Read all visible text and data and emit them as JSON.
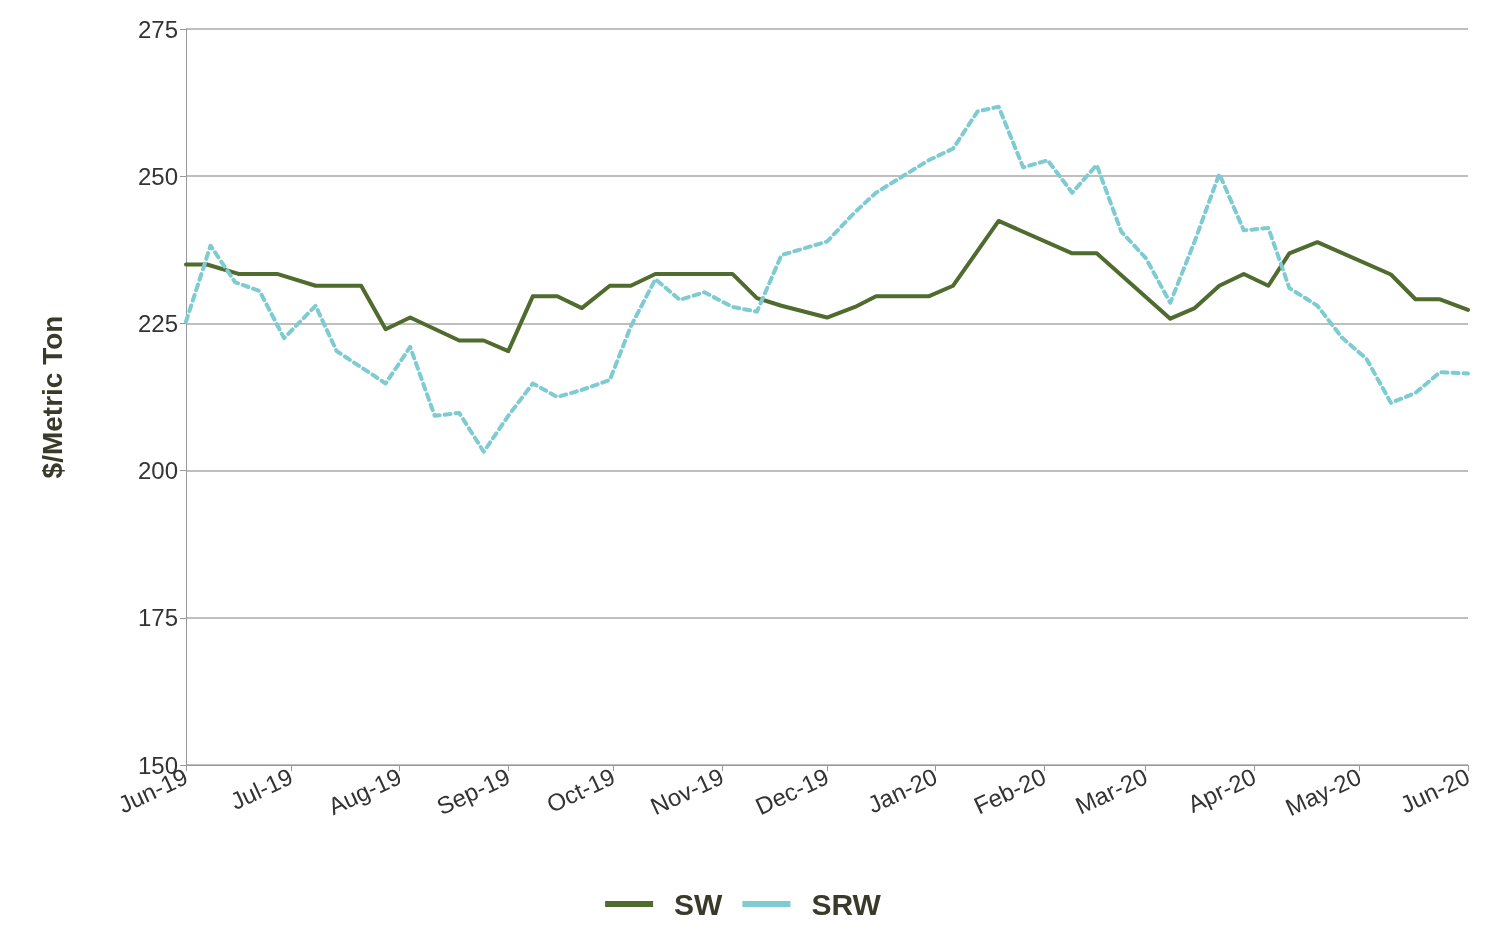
{
  "chart_data": {
    "type": "line",
    "ylabel": "$/Metric Ton",
    "ylim": [
      150,
      275
    ],
    "yticks": [
      150,
      175,
      200,
      225,
      250,
      275
    ],
    "xlim": [
      "2019-06-01",
      "2020-06-01"
    ],
    "xticks": [
      {
        "value": "2019-06-01",
        "label": "Jun-19"
      },
      {
        "value": "2019-07-01",
        "label": "Jul-19"
      },
      {
        "value": "2019-08-01",
        "label": "Aug-19"
      },
      {
        "value": "2019-09-01",
        "label": "Sep-19"
      },
      {
        "value": "2019-10-01",
        "label": "Oct-19"
      },
      {
        "value": "2019-11-01",
        "label": "Nov-19"
      },
      {
        "value": "2019-12-01",
        "label": "Dec-19"
      },
      {
        "value": "2020-01-01",
        "label": "Jan-20"
      },
      {
        "value": "2020-02-01",
        "label": "Feb-20"
      },
      {
        "value": "2020-03-01",
        "label": "Mar-20"
      },
      {
        "value": "2020-04-01",
        "label": "Apr-20"
      },
      {
        "value": "2020-05-01",
        "label": "May-20"
      },
      {
        "value": "2020-06-01",
        "label": "Jun-20"
      }
    ],
    "grid": "y",
    "legend": "bottom",
    "marker": "none",
    "series": [
      {
        "name": "SW",
        "color": "#4f6b2e",
        "line_style": "solid",
        "x": [
          "2019-06-01",
          "2019-06-07",
          "2019-06-16",
          "2019-06-27",
          "2019-07-08",
          "2019-07-21",
          "2019-07-28",
          "2019-08-04",
          "2019-08-18",
          "2019-08-25",
          "2019-09-01",
          "2019-09-08",
          "2019-09-15",
          "2019-09-22",
          "2019-09-30",
          "2019-10-06",
          "2019-10-13",
          "2019-11-04",
          "2019-11-11",
          "2019-11-18",
          "2019-12-01",
          "2019-12-09",
          "2019-12-15",
          "2019-12-30",
          "2020-01-06",
          "2020-01-19",
          "2020-02-09",
          "2020-02-16",
          "2020-03-08",
          "2020-03-15",
          "2020-03-22",
          "2020-03-29",
          "2020-04-05",
          "2020-04-11",
          "2020-04-19",
          "2020-05-10",
          "2020-05-17",
          "2020-05-24",
          "2020-06-01"
        ],
        "values": [
          235,
          235,
          233.4,
          233.4,
          231.4,
          231.4,
          224,
          226,
          222.1,
          222.1,
          220.3,
          229.6,
          229.6,
          227.6,
          231.4,
          231.4,
          233.4,
          233.4,
          229.3,
          228,
          226,
          227.8,
          229.6,
          229.6,
          231.4,
          242.4,
          236.9,
          236.9,
          225.8,
          227.6,
          231.4,
          233.4,
          231.4,
          236.9,
          238.8,
          233.3,
          229.1,
          229.1,
          227.3
        ]
      },
      {
        "name": "SRW",
        "color": "#7ecbd1",
        "line_style": "dashed",
        "x": [
          "2019-06-01",
          "2019-06-08",
          "2019-06-15",
          "2019-06-22",
          "2019-06-29",
          "2019-07-08",
          "2019-07-14",
          "2019-07-28",
          "2019-08-04",
          "2019-08-11",
          "2019-08-18",
          "2019-08-25",
          "2019-09-01",
          "2019-09-08",
          "2019-09-15",
          "2019-09-22",
          "2019-09-30",
          "2019-10-06",
          "2019-10-13",
          "2019-10-20",
          "2019-10-27",
          "2019-11-04",
          "2019-11-11",
          "2019-11-18",
          "2019-12-01",
          "2019-12-09",
          "2019-12-15",
          "2019-12-30",
          "2020-01-06",
          "2020-01-13",
          "2020-01-19",
          "2020-01-26",
          "2020-02-02",
          "2020-02-09",
          "2020-02-16",
          "2020-02-23",
          "2020-03-01",
          "2020-03-08",
          "2020-03-15",
          "2020-03-22",
          "2020-03-29",
          "2020-04-05",
          "2020-04-11",
          "2020-04-19",
          "2020-04-26",
          "2020-05-03",
          "2020-05-10",
          "2020-05-17",
          "2020-05-24",
          "2020-06-01"
        ],
        "values": [
          225.3,
          238.2,
          232,
          230.5,
          222.5,
          228,
          220.3,
          214.8,
          221,
          209.3,
          209.8,
          203.2,
          209.3,
          214.8,
          212.5,
          213.7,
          215.4,
          224.5,
          232.5,
          229,
          230.3,
          227.8,
          227,
          236.6,
          238.9,
          243.9,
          247.2,
          252.7,
          254.7,
          261,
          261.8,
          251.5,
          252.7,
          247.2,
          251.9,
          240.6,
          236.1,
          228.5,
          239,
          250.4,
          240.8,
          241.2,
          231,
          228,
          222.6,
          219,
          211.5,
          213.2,
          216.7,
          216.5
        ]
      }
    ]
  }
}
